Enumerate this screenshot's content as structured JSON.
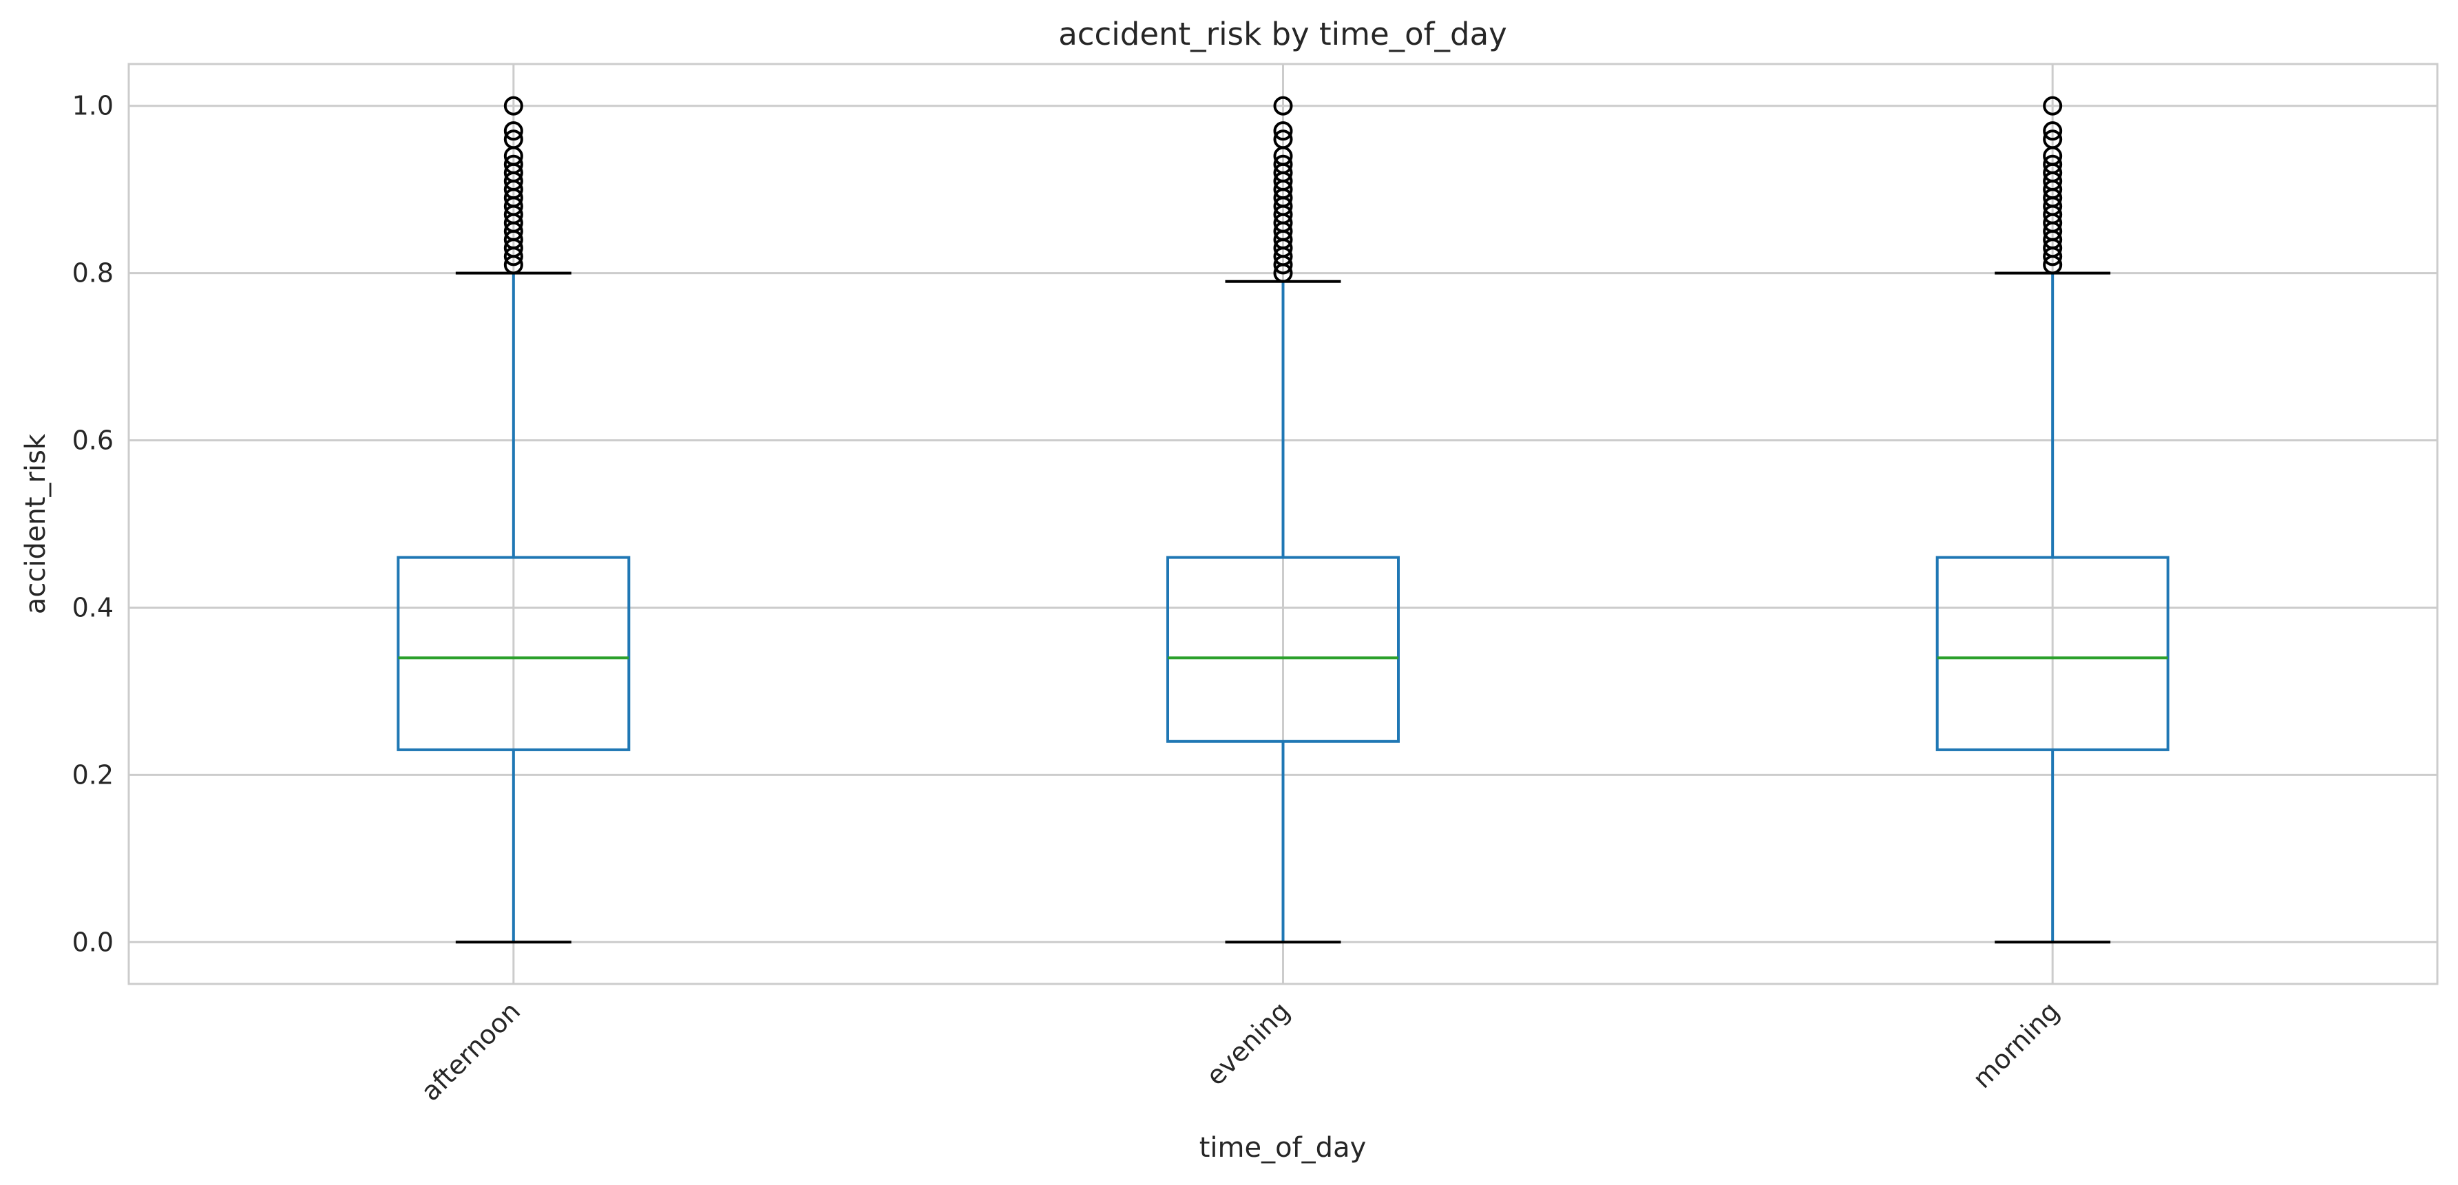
{
  "chart_data": {
    "type": "box",
    "title": "accident_risk by time_of_day",
    "xlabel": "time_of_day",
    "ylabel": "accident_risk",
    "ylim": [
      -0.05,
      1.05
    ],
    "yticks": [
      0.0,
      0.2,
      0.4,
      0.6,
      0.8,
      1.0
    ],
    "ytick_labels": [
      "0.0",
      "0.2",
      "0.4",
      "0.6",
      "0.8",
      "1.0"
    ],
    "grid": true,
    "categories": [
      "afternoon",
      "evening",
      "morning"
    ],
    "boxes": [
      {
        "category": "afternoon",
        "whisker_low": 0.0,
        "q1": 0.23,
        "median": 0.34,
        "q3": 0.46,
        "whisker_high": 0.8,
        "outliers": [
          0.81,
          0.82,
          0.83,
          0.84,
          0.85,
          0.86,
          0.87,
          0.88,
          0.89,
          0.9,
          0.91,
          0.92,
          0.93,
          0.94,
          0.96,
          0.97,
          1.0
        ]
      },
      {
        "category": "evening",
        "whisker_low": 0.0,
        "q1": 0.24,
        "median": 0.34,
        "q3": 0.46,
        "whisker_high": 0.79,
        "outliers": [
          0.8,
          0.81,
          0.82,
          0.83,
          0.84,
          0.85,
          0.86,
          0.87,
          0.88,
          0.89,
          0.9,
          0.91,
          0.92,
          0.93,
          0.94,
          0.96,
          0.97,
          1.0
        ]
      },
      {
        "category": "morning",
        "whisker_low": 0.0,
        "q1": 0.23,
        "median": 0.34,
        "q3": 0.46,
        "whisker_high": 0.8,
        "outliers": [
          0.81,
          0.82,
          0.83,
          0.84,
          0.85,
          0.86,
          0.87,
          0.88,
          0.89,
          0.9,
          0.91,
          0.92,
          0.93,
          0.94,
          0.96,
          0.97,
          1.0
        ]
      }
    ],
    "colors": {
      "box": "#1f77b4",
      "median": "#2ca02c",
      "whisker_cap": "#000000",
      "outlier": "#000000"
    }
  }
}
